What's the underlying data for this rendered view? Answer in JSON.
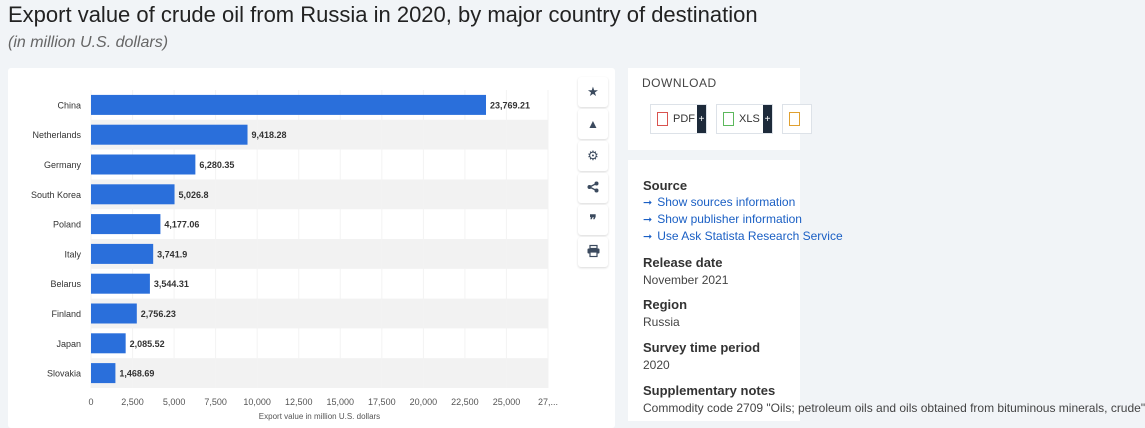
{
  "header": {
    "title": "Export value of crude oil from Russia in 2020, by major country of destination",
    "subtitle": "(in million U.S. dollars)"
  },
  "chart_data": {
    "type": "bar",
    "orientation": "horizontal",
    "categories": [
      "China",
      "Netherlands",
      "Germany",
      "South Korea",
      "Poland",
      "Italy",
      "Belarus",
      "Finland",
      "Japan",
      "Slovakia"
    ],
    "values": [
      23769.21,
      9418.28,
      6280.35,
      5026.8,
      4177.06,
      3741.9,
      3544.31,
      2756.23,
      2085.52,
      1468.69
    ],
    "value_labels": [
      "23,769.21",
      "9,418.28",
      "6,280.35",
      "5,026.8",
      "4,177.06",
      "3,741.9",
      "3,544.31",
      "2,756.23",
      "2,085.52",
      "1,468.69"
    ],
    "x_ticks": [
      "0",
      "2,500",
      "5,000",
      "7,500",
      "10,000",
      "12,500",
      "15,000",
      "17,500",
      "20,000",
      "22,500",
      "25,000",
      "27,..."
    ],
    "xlim": [
      0,
      27500
    ],
    "xlabel": "Export value in million U.S. dollars",
    "bar_color": "#2a6fdb",
    "stripe_color": "#f2f2f2"
  },
  "toolbar": {
    "items": [
      {
        "name": "star-icon",
        "glyph": "★"
      },
      {
        "name": "bell-icon",
        "glyph": "🔔"
      },
      {
        "name": "gear-icon",
        "glyph": "⚙"
      },
      {
        "name": "share-icon",
        "glyph": "<"
      },
      {
        "name": "quote-icon",
        "glyph": "❞"
      },
      {
        "name": "print-icon",
        "glyph": "⎙"
      }
    ]
  },
  "download": {
    "heading": "DOWNLOAD",
    "pdf_label": "PDF",
    "xls_label": "XLS",
    "plus": "+"
  },
  "info": {
    "source_heading": "Source",
    "links": [
      "Show sources information",
      "Show publisher information",
      "Use Ask Statista Research Service"
    ],
    "release_heading": "Release date",
    "release_value": "November 2021",
    "region_heading": "Region",
    "region_value": "Russia",
    "survey_heading": "Survey time period",
    "survey_value": "2020",
    "notes_heading": "Supplementary notes",
    "notes_value": "Commodity code 2709 \"Oils; petroleum oils and oils obtained from bituminous minerals, crude\""
  }
}
